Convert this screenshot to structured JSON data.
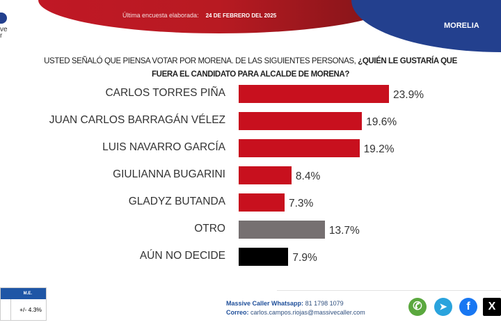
{
  "header": {
    "survey_label": "Última encuesta elaborada:",
    "survey_date": "24 DE FEBRERO DEL 2025",
    "city": "MORELIA",
    "logo_text": [
      "ve",
      "r"
    ]
  },
  "chart_data": {
    "type": "bar",
    "orientation": "horizontal",
    "title_plain": "USTED SEÑALÓ QUE PIENSA VOTAR POR MORENA.  DE LAS SIGUIENTES PERSONAS, ",
    "title_bold1": "¿QUIÉN LE GUSTARÍA QUE",
    "title_bold2": "FUERA EL CANDIDATO PARA ALCALDE DE MORENA?",
    "categories": [
      "CARLOS TORRES PIÑA",
      "JUAN CARLOS BARRAGÁN VÉLEZ",
      "LUIS NAVARRO GARCÍA",
      "GIULIANNA BUGARINI",
      "GLADYZ BUTANDA",
      "OTRO",
      "AÚN NO DECIDE"
    ],
    "values": [
      23.9,
      19.6,
      19.2,
      8.4,
      7.3,
      13.7,
      7.9
    ],
    "labels": [
      "23.9%",
      "19.6%",
      "19.2%",
      "8.4%",
      "7.3%",
      "13.7%",
      "7.9%"
    ],
    "colors": [
      "#c8101e",
      "#c8101e",
      "#c8101e",
      "#c8101e",
      "#c8101e",
      "#767071",
      "#000000"
    ],
    "unit": "%"
  },
  "footer": {
    "me_header": "M.E.",
    "me_value": "+/- 4.3%",
    "whatsapp_label": "Massive Caller Whatsapp:",
    "whatsapp": "81 1798 1079",
    "email_label": "Correo:",
    "email": "carlos.campos.riojas@massivecaller.com"
  }
}
